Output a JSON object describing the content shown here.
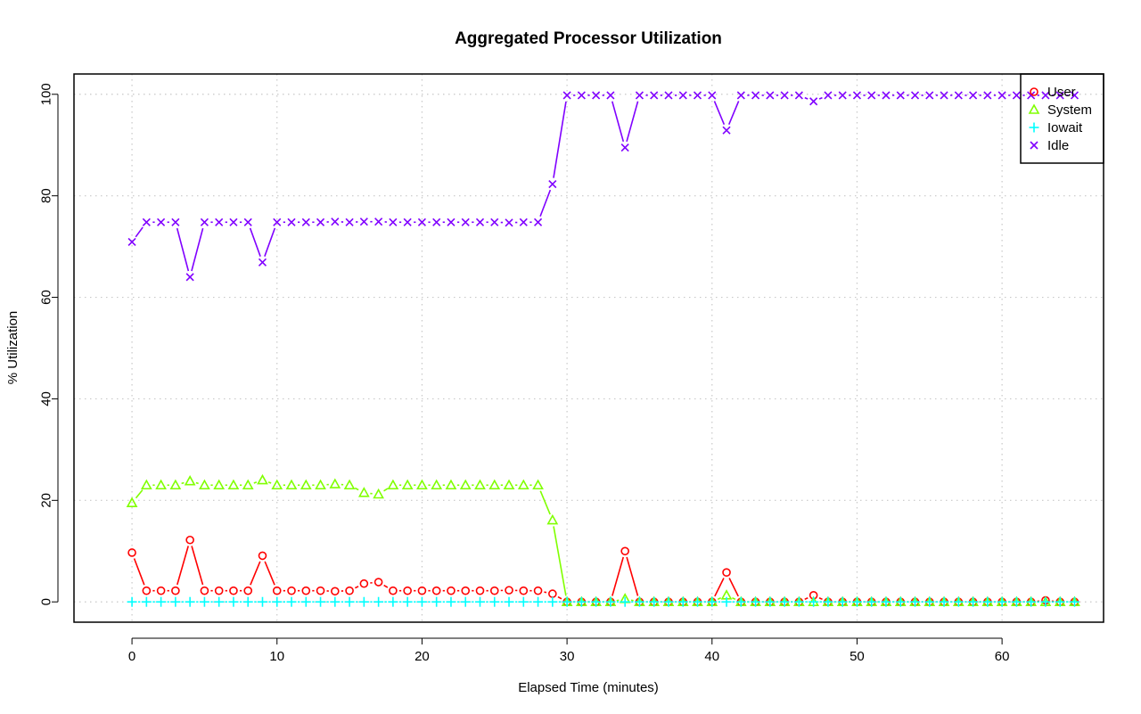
{
  "chart_data": {
    "type": "line",
    "title": "Aggregated Processor Utilization",
    "xlabel": "Elapsed Time (minutes)",
    "ylabel": "% Utilization",
    "xlim": [
      -4,
      67
    ],
    "ylim": [
      -4,
      104
    ],
    "xticks": [
      0,
      10,
      20,
      30,
      40,
      50,
      60
    ],
    "yticks": [
      0,
      20,
      40,
      60,
      80,
      100
    ],
    "grid": true,
    "legend_position": "top-right",
    "x": [
      0,
      1,
      2,
      3,
      4,
      5,
      6,
      7,
      8,
      9,
      10,
      11,
      12,
      13,
      14,
      15,
      16,
      17,
      18,
      19,
      20,
      21,
      22,
      23,
      24,
      25,
      26,
      27,
      28,
      29,
      30,
      31,
      32,
      33,
      34,
      35,
      36,
      37,
      38,
      39,
      40,
      41,
      42,
      43,
      44,
      45,
      46,
      47,
      48,
      49,
      50,
      51,
      52,
      53,
      54,
      55,
      56,
      57,
      58,
      59,
      60,
      61,
      62,
      63,
      64,
      65
    ],
    "series": [
      {
        "name": "User",
        "color": "#ff0000",
        "marker": "circle",
        "values": [
          9.7,
          2.2,
          2.2,
          2.2,
          12.2,
          2.2,
          2.2,
          2.2,
          2.2,
          9.1,
          2.2,
          2.2,
          2.2,
          2.2,
          2.1,
          2.2,
          3.6,
          3.9,
          2.2,
          2.2,
          2.2,
          2.2,
          2.2,
          2.2,
          2.2,
          2.2,
          2.3,
          2.2,
          2.2,
          1.6,
          0,
          0,
          0,
          0,
          10.0,
          0,
          0,
          0,
          0,
          0,
          0,
          5.8,
          0,
          0,
          0,
          0,
          0,
          1.3,
          0,
          0,
          0,
          0,
          0,
          0,
          0,
          0,
          0,
          0,
          0,
          0,
          0,
          0,
          0,
          0.3,
          0,
          0
        ]
      },
      {
        "name": "System",
        "color": "#80ff00",
        "marker": "triangle",
        "values": [
          19.5,
          23,
          23,
          23,
          23.8,
          23,
          23,
          23,
          23,
          24,
          23,
          23,
          23,
          23,
          23.2,
          23,
          21.5,
          21.2,
          23,
          23,
          23,
          23,
          23,
          23,
          23,
          23,
          23,
          23,
          23,
          16.1,
          0,
          0,
          0,
          0,
          0.6,
          0,
          0,
          0,
          0,
          0,
          0,
          1.3,
          0,
          0,
          0,
          0,
          0,
          0,
          0,
          0,
          0,
          0,
          0,
          0,
          0,
          0,
          0,
          0,
          0,
          0,
          0,
          0,
          0,
          0,
          0,
          0
        ]
      },
      {
        "name": "Iowait",
        "color": "#00ffff",
        "marker": "plus",
        "values": [
          0,
          0,
          0,
          0,
          0,
          0,
          0,
          0,
          0,
          0,
          0,
          0,
          0,
          0,
          0,
          0,
          0,
          0,
          0,
          0,
          0,
          0,
          0,
          0,
          0,
          0,
          0,
          0,
          0,
          0,
          0,
          0,
          0,
          0,
          0,
          0,
          0,
          0,
          0,
          0,
          0,
          0,
          0,
          0,
          0,
          0,
          0,
          0,
          0,
          0,
          0,
          0,
          0,
          0,
          0,
          0,
          0,
          0,
          0,
          0,
          0,
          0,
          0,
          0,
          0,
          0
        ]
      },
      {
        "name": "Idle",
        "color": "#8000ff",
        "marker": "x",
        "values": [
          70.9,
          74.8,
          74.8,
          74.8,
          64.0,
          74.8,
          74.8,
          74.8,
          74.8,
          66.9,
          74.8,
          74.8,
          74.8,
          74.8,
          74.9,
          74.8,
          74.9,
          74.9,
          74.8,
          74.8,
          74.8,
          74.8,
          74.8,
          74.8,
          74.8,
          74.8,
          74.7,
          74.8,
          74.8,
          82.3,
          99.8,
          99.8,
          99.8,
          99.8,
          89.5,
          99.8,
          99.8,
          99.8,
          99.8,
          99.8,
          99.8,
          92.9,
          99.8,
          99.8,
          99.8,
          99.8,
          99.8,
          98.6,
          99.8,
          99.8,
          99.8,
          99.8,
          99.8,
          99.8,
          99.8,
          99.8,
          99.8,
          99.8,
          99.8,
          99.8,
          99.8,
          99.8,
          99.8,
          99.8,
          99.8,
          99.8
        ]
      }
    ]
  }
}
